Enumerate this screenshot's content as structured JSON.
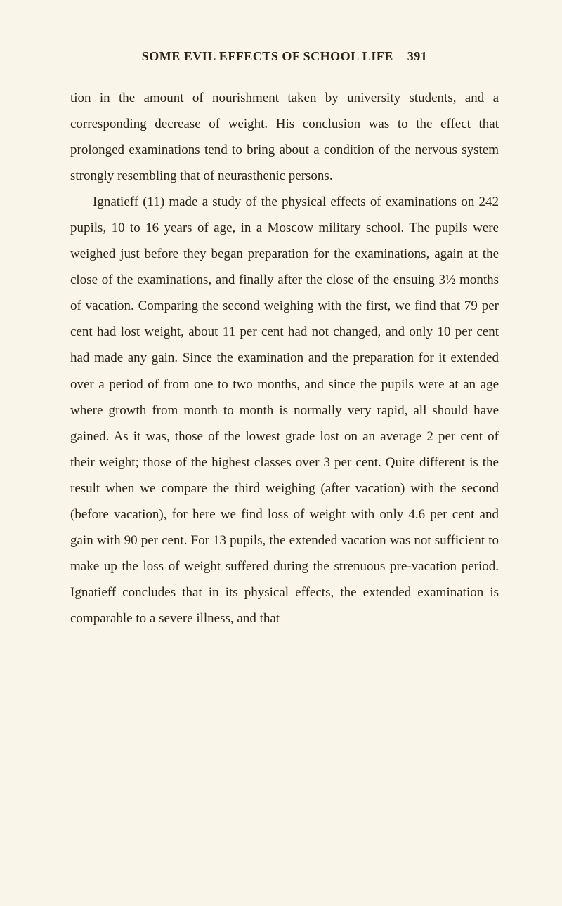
{
  "header": {
    "title": "SOME EVIL EFFECTS OF SCHOOL LIFE",
    "pageNumber": "391"
  },
  "paragraphs": {
    "p1": "tion in the amount of nourishment taken by university students, and a corresponding decrease of weight. His conclusion was to the effect that prolonged examinations tend to bring about a condition of the nervous system strongly resembling that of neurasthenic persons.",
    "p2": "Ignatieff (11) made a study of the physical effects of examinations on 242 pupils, 10 to 16 years of age, in a Moscow military school. The pupils were weighed just before they began preparation for the examinations, again at the close of the examinations, and finally after the close of the ensuing 3½ months of vacation. Comparing the second weighing with the first, we find that 79 per cent had lost weight, about 11 per cent had not changed, and only 10 per cent had made any gain. Since the examination and the preparation for it extended over a period of from one to two months, and since the pupils were at an age where growth from month to month is normally very rapid, all should have gained. As it was, those of the lowest grade lost on an average 2 per cent of their weight; those of the highest classes over 3 per cent. Quite different is the result when we compare the third weighing (after vacation) with the second (before vacation), for here we find loss of weight with only 4.6 per cent and gain with 90 per cent. For 13 pupils, the extended vacation was not sufficient to make up the loss of weight suffered during the strenuous pre-vacation period. Ignatieff concludes that in its physical effects, the extended examination is comparable to a severe illness, and that"
  }
}
